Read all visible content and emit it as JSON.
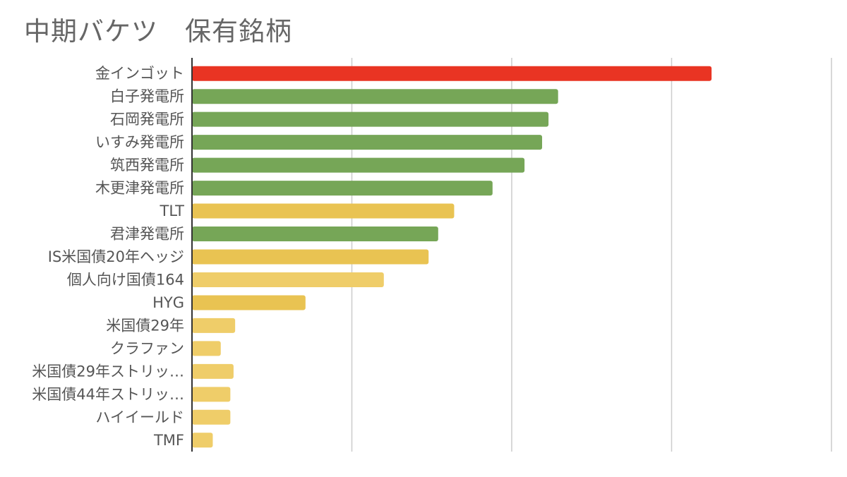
{
  "chart_data": {
    "type": "bar",
    "orientation": "horizontal",
    "title": "中期バケツ　保有銘柄",
    "xlabel": "",
    "ylabel": "",
    "grid": true,
    "legend": "none",
    "xlim": [
      0,
      4
    ],
    "categories": [
      "金インゴット",
      "白子発電所",
      "石岡発電所",
      "いすみ発電所",
      "筑西発電所",
      "木更津発電所",
      "TLT",
      "君津発電所",
      "IS米国債20年ヘッジ",
      "個人向け国債164",
      "HYG",
      "米国債29年",
      "クラファン",
      "米国債29年ストリッ…",
      "米国債44年ストリッ…",
      "ハイイールド",
      "TMF"
    ],
    "values": [
      3.25,
      2.29,
      2.23,
      2.19,
      2.08,
      1.88,
      1.64,
      1.54,
      1.48,
      1.2,
      0.71,
      0.27,
      0.18,
      0.26,
      0.24,
      0.24,
      0.13
    ],
    "colors": [
      "#e93423",
      "#76a657",
      "#76a657",
      "#76a657",
      "#76a657",
      "#76a657",
      "#e9c352",
      "#76a657",
      "#e9c352",
      "#efcd69",
      "#e9c352",
      "#efcd69",
      "#efcd69",
      "#efcd69",
      "#efcd69",
      "#efcd69",
      "#efcd69"
    ]
  }
}
